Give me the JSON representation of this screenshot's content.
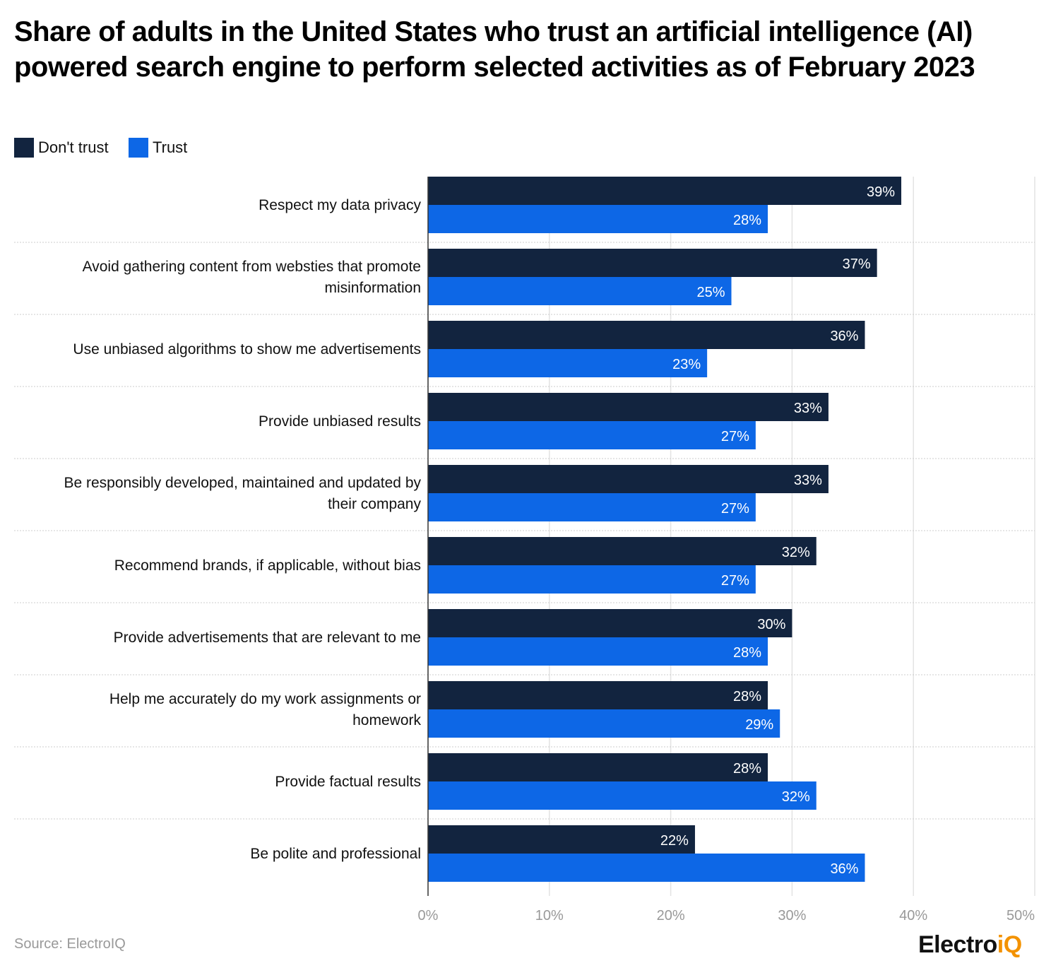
{
  "title": "Share of adults in the United States who trust an artificial intelligence (AI) powered search engine to perform selected activities as of February 2023",
  "source": "Source: ElectroIQ",
  "logo": {
    "text_main": "Electro",
    "text_accent": "iQ"
  },
  "colors": {
    "dont_trust": "#12243f",
    "trust": "#0d67e6",
    "logo_accent": "#f39200"
  },
  "chart_data": {
    "type": "bar",
    "orientation": "horizontal",
    "title": "Share of adults in the United States who trust an artificial intelligence (AI) powered search engine to perform selected activities as of February 2023",
    "categories": [
      "Respect my data privacy",
      "Avoid gathering content from websties that promote misinformation",
      "Use unbiased algorithms to show me advertisements",
      "Provide unbiased results",
      "Be responsibly developed, maintained and updated by their company",
      "Recommend brands, if applicable, without bias",
      "Provide advertisements that are relevant to me",
      "Help me accurately do my work assignments or homework",
      "Provide factual results",
      "Be polite and professional"
    ],
    "series": [
      {
        "name": "Don't trust",
        "values": [
          39,
          37,
          36,
          33,
          33,
          32,
          30,
          28,
          28,
          22
        ]
      },
      {
        "name": "Trust",
        "values": [
          28,
          25,
          23,
          27,
          27,
          27,
          28,
          29,
          32,
          36
        ]
      }
    ],
    "xlim": [
      0,
      50
    ],
    "xticks": [
      "0%",
      "10%",
      "20%",
      "30%",
      "40%",
      "50%"
    ],
    "value_suffix": "%",
    "grid": true,
    "legend": "top-left"
  }
}
